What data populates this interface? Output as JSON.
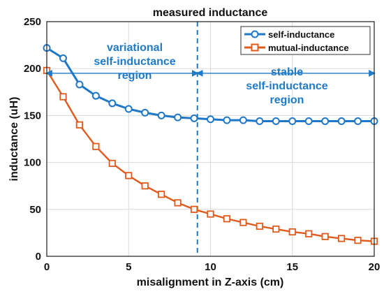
{
  "chart_data": {
    "type": "line",
    "title": "measured inductance",
    "xlabel": "misalignment in Z-axis (cm)",
    "ylabel": "inductance (uH)",
    "xlim": [
      0,
      20
    ],
    "ylim": [
      0,
      250
    ],
    "xticks": [
      0,
      5,
      10,
      15,
      20
    ],
    "yticks": [
      0,
      50,
      100,
      150,
      200,
      250
    ],
    "grid": true,
    "legend_position": "top-right",
    "x": [
      0,
      1,
      2,
      3,
      4,
      5,
      6,
      7,
      8,
      9,
      10,
      11,
      12,
      13,
      14,
      15,
      16,
      17,
      18,
      19,
      20
    ],
    "series": [
      {
        "name": "self-inductance",
        "color": "#1f77c8",
        "marker": "circle",
        "values": [
          222,
          211,
          183,
          171,
          163,
          157,
          153,
          150,
          148,
          147,
          146,
          145,
          145,
          144,
          144,
          144,
          144,
          144,
          144,
          144,
          144
        ]
      },
      {
        "name": "mutual-inductance",
        "color": "#e05a1c",
        "marker": "square",
        "values": [
          198,
          170,
          140,
          117,
          99,
          86,
          75,
          66,
          57,
          50,
          45,
          40,
          36,
          32,
          29,
          26,
          24,
          21,
          19,
          17,
          16
        ]
      }
    ],
    "reference_line": {
      "x": 9.2,
      "color": "#1f7ac7",
      "style": "dashed"
    },
    "annotations": [
      {
        "id": "variational",
        "lines": [
          "variational",
          "self-inductance",
          "region"
        ],
        "color": "#1f7ac7"
      },
      {
        "id": "stable",
        "lines": [
          "stable",
          "self-inductance",
          "region"
        ],
        "color": "#1f7ac7"
      }
    ],
    "arrows": [
      {
        "from_x": 0,
        "to_x": 9.2,
        "y": 195,
        "color": "#1f7ac7"
      },
      {
        "from_x": 9.2,
        "to_x": 20,
        "y": 195,
        "color": "#1f7ac7"
      }
    ]
  }
}
